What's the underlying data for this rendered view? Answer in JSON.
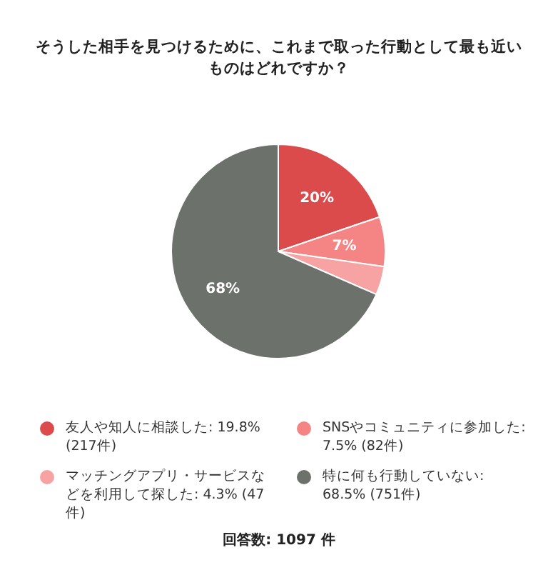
{
  "chart_data": {
    "type": "pie",
    "title": "そうした相手を見つけるために、これまで取った行動として最も近いものはどれですか？",
    "categories": [
      "友人や知人に相談した: 19.8% (217件)",
      "SNSやコミュニティに参加した: 7.5% (82件)",
      "マッチングアプリ・サービスなどを利用して探した: 4.3% (47件)",
      "特に何も行動していない: 68.5% (751件)"
    ],
    "values": [
      19.8,
      7.5,
      4.3,
      68.5
    ],
    "value_labels": [
      "20%",
      "7%",
      null,
      "68%"
    ],
    "colors": [
      "#dc4b4b",
      "#f58585",
      "#f7a3a3",
      "#6d716c"
    ],
    "legend": "bottom",
    "annotations": [
      "回答数: 1097 件"
    ]
  }
}
